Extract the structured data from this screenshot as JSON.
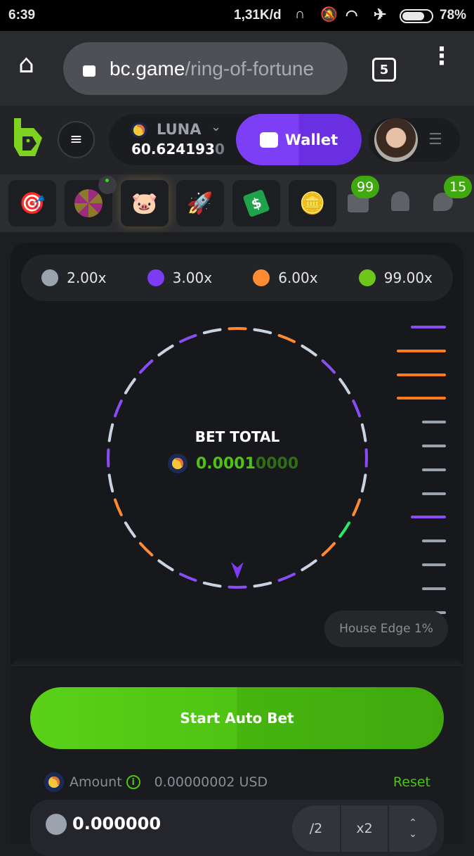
{
  "status_bar": {
    "time": "6:39",
    "net_speed": "1,31K/d",
    "battery": "78%"
  },
  "browser": {
    "url_domain": "bc.game",
    "url_path": "/ring-of-fortune",
    "tab_count": "5"
  },
  "header": {
    "currency": "LUNA",
    "balance_main": "60.624193",
    "balance_tail": "0",
    "wallet_label": "Wallet"
  },
  "games": {
    "mail_badge": "99",
    "chat_badge": "15",
    "items": [
      "target-game",
      "wheel-game",
      "piggy-bank",
      "rocket-game",
      "price-tag",
      "coin-game"
    ]
  },
  "multipliers": [
    {
      "label": "2.00x",
      "color": "#9ba3ae"
    },
    {
      "label": "3.00x",
      "color": "#7d3cf3"
    },
    {
      "label": "6.00x",
      "color": "#ff8a34"
    },
    {
      "label": "99.00x",
      "color": "#6fc51c"
    }
  ],
  "ring": {
    "segments": [
      "orange",
      "white",
      "orange",
      "white",
      "purple",
      "white",
      "purple",
      "white",
      "purple",
      "white",
      "orange",
      "green",
      "orange",
      "white",
      "purple",
      "white",
      "purple",
      "white",
      "purple",
      "white",
      "orange",
      "white",
      "orange",
      "white",
      "purple",
      "white",
      "purple",
      "white",
      "purple",
      "white",
      "purple",
      "white"
    ],
    "colors": {
      "orange": "#ff8a34",
      "white": "#c9d3e2",
      "purple": "#8a4cf5",
      "green": "#29e86f"
    },
    "bet_total_label": "BET TOTAL",
    "bet_total_bright": "0.0001",
    "bet_total_dim": "0000"
  },
  "history_bars": [
    "purple",
    "orange",
    "orange",
    "orange",
    "gray",
    "gray",
    "gray",
    "gray",
    "purple",
    "gray",
    "gray",
    "gray",
    "gray"
  ],
  "house_edge": "House Edge 1%",
  "controls": {
    "start_label": "Start Auto Bet",
    "amount_label": "Amount",
    "amount_usd": "0.00000002 USD",
    "reset_label": "Reset",
    "amount_value": "0.000000",
    "half_label": "/2",
    "double_label": "x2"
  }
}
